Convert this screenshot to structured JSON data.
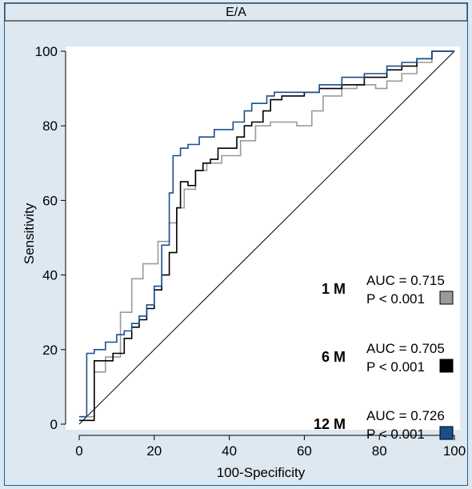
{
  "chart_data": {
    "type": "line",
    "title": "E/A",
    "xlabel": "100-Specificity",
    "ylabel": "Sensitivity",
    "xlim": [
      0,
      100
    ],
    "ylim": [
      0,
      100
    ],
    "xticks": [
      "0",
      "20",
      "40",
      "60",
      "80",
      "100"
    ],
    "yticks": [
      "0",
      "20",
      "40",
      "60",
      "80",
      "100"
    ],
    "grid": false,
    "legend_position": "bottom-right",
    "reference_line": {
      "x": [
        0,
        100
      ],
      "y": [
        0,
        100
      ]
    },
    "series": [
      {
        "name": "1 M",
        "color": "#9a9a9a",
        "auc_text": "AUC = 0.715",
        "p_text": "P < 0.001",
        "x": [
          0,
          4,
          4,
          4,
          7,
          7,
          11,
          11,
          14,
          14,
          17,
          17,
          21,
          21,
          24,
          24,
          26,
          26,
          28,
          28,
          31,
          31,
          34,
          34,
          38,
          38,
          43,
          43,
          47,
          47,
          51,
          51,
          58,
          58,
          62,
          62,
          65,
          65,
          70,
          70,
          74,
          74,
          79,
          79,
          82,
          82,
          86,
          86,
          90,
          90,
          94,
          94,
          100
        ],
        "y": [
          2,
          2,
          3,
          14,
          14,
          18,
          18,
          30,
          30,
          39,
          39,
          43,
          43,
          49,
          49,
          54,
          54,
          58,
          58,
          63,
          63,
          68,
          68,
          70,
          70,
          72,
          72,
          76,
          76,
          80,
          80,
          81,
          81,
          80,
          80,
          84,
          84,
          88,
          88,
          90,
          90,
          91,
          91,
          90,
          90,
          92,
          92,
          94,
          94,
          97,
          97,
          100,
          100
        ]
      },
      {
        "name": "6 M",
        "color": "#000000",
        "auc_text": "AUC = 0.705",
        "p_text": "P < 0.001",
        "x": [
          0,
          4,
          4,
          4,
          9,
          9,
          12,
          12,
          14,
          14,
          16,
          16,
          18,
          18,
          20,
          20,
          22,
          22,
          24,
          24,
          26,
          26,
          27,
          27,
          29,
          29,
          31,
          31,
          33,
          33,
          35,
          35,
          37,
          37,
          40,
          40,
          42,
          42,
          44,
          44,
          46,
          46,
          49,
          49,
          51,
          51,
          54,
          54,
          60,
          60,
          64,
          64,
          70,
          70,
          76,
          76,
          82,
          82,
          86,
          86,
          90,
          90,
          94,
          94,
          100
        ],
        "y": [
          1,
          1,
          3,
          17,
          17,
          19,
          19,
          23,
          23,
          26,
          26,
          28,
          28,
          31,
          31,
          36,
          36,
          40,
          40,
          46,
          46,
          58,
          58,
          65,
          65,
          64,
          64,
          68,
          68,
          70,
          70,
          71,
          71,
          74,
          74,
          74,
          74,
          77,
          77,
          80,
          80,
          81,
          81,
          84,
          84,
          87,
          87,
          88,
          88,
          89,
          89,
          90,
          90,
          91,
          91,
          93,
          93,
          95,
          95,
          96,
          96,
          98,
          98,
          100,
          100
        ]
      },
      {
        "name": "12 M",
        "color": "#1a4e8c",
        "auc_text": "AUC = 0.726",
        "p_text": "P < 0.001",
        "x": [
          0,
          1,
          1,
          2,
          2,
          4,
          4,
          7,
          7,
          10,
          10,
          12,
          12,
          14,
          14,
          16,
          16,
          18,
          18,
          20,
          20,
          22,
          22,
          24,
          24,
          25,
          25,
          27,
          27,
          29,
          29,
          32,
          32,
          36,
          36,
          41,
          41,
          44,
          44,
          46,
          46,
          50,
          50,
          52,
          52,
          58,
          58,
          64,
          64,
          70,
          70,
          76,
          76,
          82,
          82,
          86,
          86,
          90,
          90,
          94,
          94,
          100
        ],
        "y": [
          2,
          2,
          2,
          2,
          19,
          19,
          20,
          20,
          22,
          22,
          24,
          24,
          25,
          25,
          27,
          27,
          29,
          29,
          32,
          32,
          37,
          37,
          48,
          48,
          62,
          62,
          72,
          72,
          74,
          74,
          75,
          75,
          77,
          77,
          79,
          79,
          81,
          81,
          84,
          84,
          86,
          86,
          88,
          88,
          89,
          89,
          89,
          89,
          91,
          91,
          93,
          93,
          94,
          94,
          96,
          96,
          97,
          97,
          98,
          98,
          100,
          100
        ]
      }
    ]
  }
}
